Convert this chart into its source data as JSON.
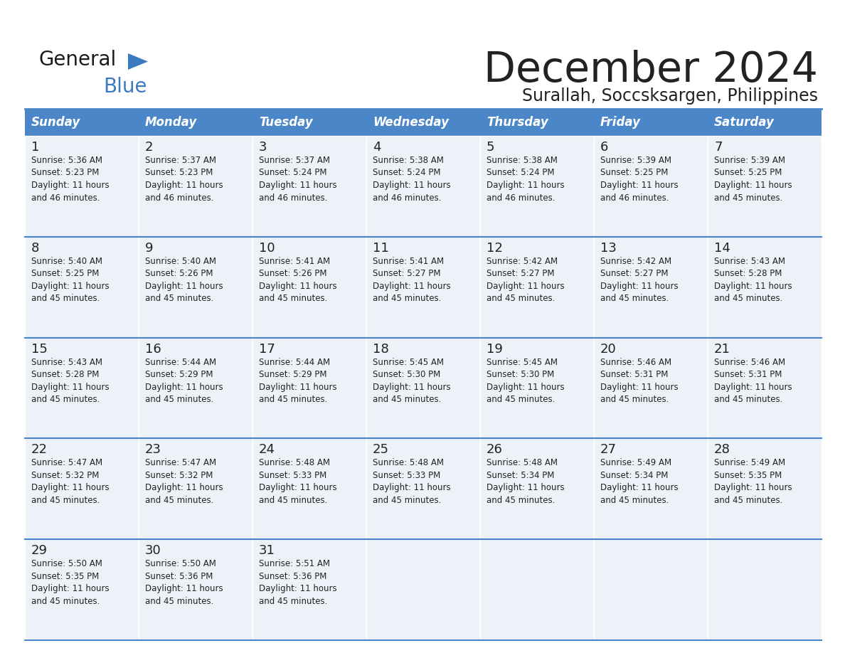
{
  "title": "December 2024",
  "subtitle": "Surallah, Soccsksargen, Philippines",
  "header_color": "#4a86c8",
  "header_text_color": "#ffffff",
  "cell_bg_color": "#edf2f8",
  "border_color": "#4a86c8",
  "text_color": "#222222",
  "day_names": [
    "Sunday",
    "Monday",
    "Tuesday",
    "Wednesday",
    "Thursday",
    "Friday",
    "Saturday"
  ],
  "weeks": [
    [
      {
        "day": 1,
        "sunrise": "5:36 AM",
        "sunset": "5:23 PM",
        "daylight": "11 hours and 46 minutes."
      },
      {
        "day": 2,
        "sunrise": "5:37 AM",
        "sunset": "5:23 PM",
        "daylight": "11 hours and 46 minutes."
      },
      {
        "day": 3,
        "sunrise": "5:37 AM",
        "sunset": "5:24 PM",
        "daylight": "11 hours and 46 minutes."
      },
      {
        "day": 4,
        "sunrise": "5:38 AM",
        "sunset": "5:24 PM",
        "daylight": "11 hours and 46 minutes."
      },
      {
        "day": 5,
        "sunrise": "5:38 AM",
        "sunset": "5:24 PM",
        "daylight": "11 hours and 46 minutes."
      },
      {
        "day": 6,
        "sunrise": "5:39 AM",
        "sunset": "5:25 PM",
        "daylight": "11 hours and 46 minutes."
      },
      {
        "day": 7,
        "sunrise": "5:39 AM",
        "sunset": "5:25 PM",
        "daylight": "11 hours and 45 minutes."
      }
    ],
    [
      {
        "day": 8,
        "sunrise": "5:40 AM",
        "sunset": "5:25 PM",
        "daylight": "11 hours and 45 minutes."
      },
      {
        "day": 9,
        "sunrise": "5:40 AM",
        "sunset": "5:26 PM",
        "daylight": "11 hours and 45 minutes."
      },
      {
        "day": 10,
        "sunrise": "5:41 AM",
        "sunset": "5:26 PM",
        "daylight": "11 hours and 45 minutes."
      },
      {
        "day": 11,
        "sunrise": "5:41 AM",
        "sunset": "5:27 PM",
        "daylight": "11 hours and 45 minutes."
      },
      {
        "day": 12,
        "sunrise": "5:42 AM",
        "sunset": "5:27 PM",
        "daylight": "11 hours and 45 minutes."
      },
      {
        "day": 13,
        "sunrise": "5:42 AM",
        "sunset": "5:27 PM",
        "daylight": "11 hours and 45 minutes."
      },
      {
        "day": 14,
        "sunrise": "5:43 AM",
        "sunset": "5:28 PM",
        "daylight": "11 hours and 45 minutes."
      }
    ],
    [
      {
        "day": 15,
        "sunrise": "5:43 AM",
        "sunset": "5:28 PM",
        "daylight": "11 hours and 45 minutes."
      },
      {
        "day": 16,
        "sunrise": "5:44 AM",
        "sunset": "5:29 PM",
        "daylight": "11 hours and 45 minutes."
      },
      {
        "day": 17,
        "sunrise": "5:44 AM",
        "sunset": "5:29 PM",
        "daylight": "11 hours and 45 minutes."
      },
      {
        "day": 18,
        "sunrise": "5:45 AM",
        "sunset": "5:30 PM",
        "daylight": "11 hours and 45 minutes."
      },
      {
        "day": 19,
        "sunrise": "5:45 AM",
        "sunset": "5:30 PM",
        "daylight": "11 hours and 45 minutes."
      },
      {
        "day": 20,
        "sunrise": "5:46 AM",
        "sunset": "5:31 PM",
        "daylight": "11 hours and 45 minutes."
      },
      {
        "day": 21,
        "sunrise": "5:46 AM",
        "sunset": "5:31 PM",
        "daylight": "11 hours and 45 minutes."
      }
    ],
    [
      {
        "day": 22,
        "sunrise": "5:47 AM",
        "sunset": "5:32 PM",
        "daylight": "11 hours and 45 minutes."
      },
      {
        "day": 23,
        "sunrise": "5:47 AM",
        "sunset": "5:32 PM",
        "daylight": "11 hours and 45 minutes."
      },
      {
        "day": 24,
        "sunrise": "5:48 AM",
        "sunset": "5:33 PM",
        "daylight": "11 hours and 45 minutes."
      },
      {
        "day": 25,
        "sunrise": "5:48 AM",
        "sunset": "5:33 PM",
        "daylight": "11 hours and 45 minutes."
      },
      {
        "day": 26,
        "sunrise": "5:48 AM",
        "sunset": "5:34 PM",
        "daylight": "11 hours and 45 minutes."
      },
      {
        "day": 27,
        "sunrise": "5:49 AM",
        "sunset": "5:34 PM",
        "daylight": "11 hours and 45 minutes."
      },
      {
        "day": 28,
        "sunrise": "5:49 AM",
        "sunset": "5:35 PM",
        "daylight": "11 hours and 45 minutes."
      }
    ],
    [
      {
        "day": 29,
        "sunrise": "5:50 AM",
        "sunset": "5:35 PM",
        "daylight": "11 hours and 45 minutes."
      },
      {
        "day": 30,
        "sunrise": "5:50 AM",
        "sunset": "5:36 PM",
        "daylight": "11 hours and 45 minutes."
      },
      {
        "day": 31,
        "sunrise": "5:51 AM",
        "sunset": "5:36 PM",
        "daylight": "11 hours and 45 minutes."
      },
      null,
      null,
      null,
      null
    ]
  ],
  "logo_general_color": "#1a1a1a",
  "logo_blue_color": "#3a7abf",
  "logo_triangle_color": "#3a7abf"
}
